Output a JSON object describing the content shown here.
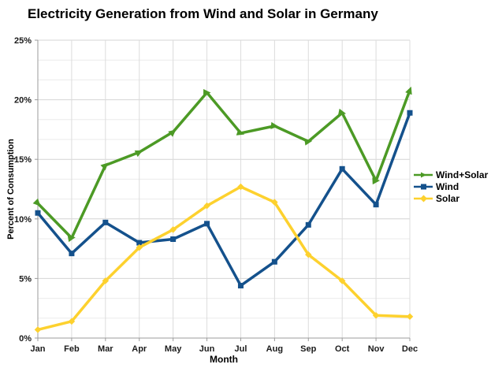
{
  "chart_data": {
    "type": "line",
    "title": "Electricity Generation from Wind and Solar in Germany",
    "xlabel": "Month",
    "ylabel": "Percent of Consumption",
    "ylim": [
      0,
      25
    ],
    "y_major_step": 5,
    "y_minor_per_major": 2,
    "y_tick_labels": [
      "0%",
      "5%",
      "10%",
      "15%",
      "20%",
      "25%"
    ],
    "grid": true,
    "legend_position": "right",
    "categories": [
      "Jan",
      "Feb",
      "Mar",
      "Apr",
      "May",
      "Jun",
      "Jul",
      "Aug",
      "Sep",
      "Oct",
      "Nov",
      "Dec"
    ],
    "series": [
      {
        "name": "Wind+Solar",
        "color": "#4c9a25",
        "marker": "triangle",
        "values": [
          11.3,
          8.4,
          14.5,
          15.6,
          17.3,
          20.6,
          17.2,
          17.8,
          16.5,
          18.9,
          13.2,
          20.8
        ]
      },
      {
        "name": "Wind",
        "color": "#14518c",
        "marker": "square",
        "values": [
          10.5,
          7.1,
          9.7,
          8.0,
          8.3,
          9.6,
          4.4,
          6.4,
          9.5,
          14.2,
          11.2,
          18.9
        ]
      },
      {
        "name": "Solar",
        "color": "#fdd12e",
        "marker": "diamond",
        "values": [
          0.7,
          1.4,
          4.8,
          7.6,
          9.1,
          11.1,
          12.7,
          11.4,
          7.0,
          4.8,
          1.9,
          1.8
        ]
      }
    ]
  }
}
